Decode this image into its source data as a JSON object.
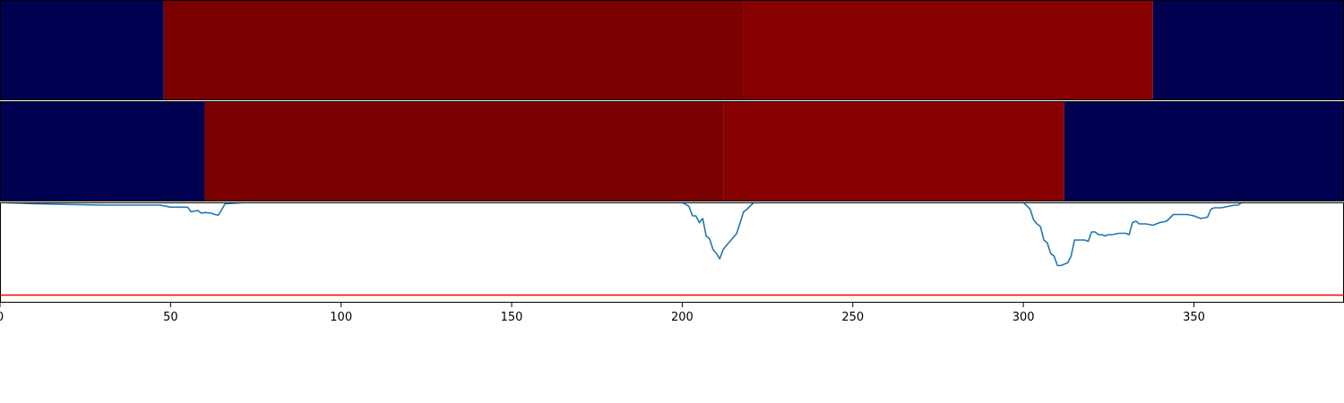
{
  "chart_data": {
    "type": "line",
    "xlim": [
      0,
      394
    ],
    "x_ticks": [
      0,
      50,
      100,
      150,
      200,
      250,
      300,
      350
    ],
    "x_tick_labels": [
      "0",
      "50",
      "100",
      "150",
      "200",
      "250",
      "300",
      "350"
    ],
    "grid": false,
    "panels": [
      {
        "type": "heatmap",
        "colormap": "seismic",
        "segments": [
          {
            "x0": 0,
            "x1": 48,
            "color": "#000050"
          },
          {
            "x0": 48,
            "x1": 218,
            "color": "#7b0000"
          },
          {
            "x0": 218,
            "x1": 338,
            "color": "#870000"
          },
          {
            "x0": 338,
            "x1": 394,
            "color": "#000050"
          }
        ]
      },
      {
        "type": "heatmap",
        "colormap": "seismic",
        "segments": [
          {
            "x0": 0,
            "x1": 60,
            "color": "#000050"
          },
          {
            "x0": 60,
            "x1": 212,
            "color": "#7b0000"
          },
          {
            "x0": 212,
            "x1": 312,
            "color": "#870000"
          },
          {
            "x0": 312,
            "x1": 394,
            "color": "#000050"
          }
        ]
      },
      {
        "type": "line",
        "ylim": [
          -1.0,
          0.0
        ],
        "series": [
          {
            "color": "#1f77b4",
            "x": [
              0,
              10,
              20,
              30,
              40,
              47,
              50,
              53,
              55,
              56,
              58,
              59,
              60,
              62,
              63,
              64,
              66,
              69,
              72,
              75,
              80,
              200,
              202,
              203,
              204,
              205,
              206,
              207,
              208,
              209,
              210,
              211,
              212,
              213,
              214,
              215,
              216,
              218,
              219,
              221,
              300,
              302,
              303,
              304,
              305,
              306,
              307,
              308,
              309,
              310,
              311,
              312,
              313,
              314,
              315,
              316,
              317,
              318,
              319,
              320,
              321,
              322,
              323,
              324,
              325,
              326,
              328,
              330,
              331,
              332,
              333,
              334,
              336,
              338,
              340,
              342,
              344,
              346,
              348,
              350,
              352,
              354,
              355,
              356,
              358,
              362,
              363,
              364,
              394
            ],
            "y": [
              0.0,
              -0.01,
              -0.015,
              -0.02,
              -0.02,
              -0.02,
              -0.035,
              -0.035,
              -0.035,
              -0.07,
              -0.06,
              -0.08,
              -0.075,
              -0.08,
              -0.09,
              -0.095,
              -0.01,
              -0.005,
              0.0,
              0.0,
              0.0,
              0.0,
              -0.03,
              -0.1,
              -0.1,
              -0.15,
              -0.12,
              -0.25,
              -0.27,
              -0.35,
              -0.38,
              -0.42,
              -0.35,
              -0.32,
              -0.29,
              -0.26,
              -0.23,
              -0.07,
              -0.05,
              0.0,
              0.0,
              -0.05,
              -0.13,
              -0.16,
              -0.18,
              -0.28,
              -0.3,
              -0.38,
              -0.4,
              -0.47,
              -0.47,
              -0.46,
              -0.45,
              -0.4,
              -0.28,
              -0.28,
              -0.28,
              -0.28,
              -0.29,
              -0.22,
              -0.22,
              -0.24,
              -0.24,
              -0.25,
              -0.24,
              -0.24,
              -0.23,
              -0.23,
              -0.24,
              -0.15,
              -0.14,
              -0.16,
              -0.16,
              -0.17,
              -0.15,
              -0.14,
              -0.09,
              -0.09,
              -0.09,
              -0.1,
              -0.12,
              -0.11,
              -0.05,
              -0.04,
              -0.04,
              -0.02,
              -0.02,
              0.0,
              0.0
            ]
          }
        ],
        "reference_line": {
          "y": -0.69,
          "color": "#ff0000"
        }
      }
    ]
  }
}
